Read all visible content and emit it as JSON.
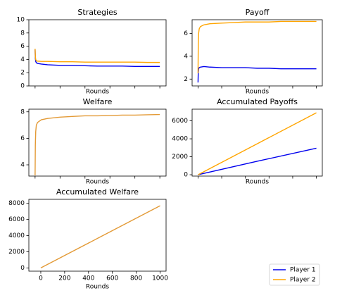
{
  "chart_data": [
    {
      "type": "line",
      "title": "Strategies",
      "xlabel": "Rounds",
      "x": [
        0,
        2,
        5,
        10,
        20,
        50,
        100,
        200,
        300,
        400,
        500,
        600,
        700,
        800,
        900,
        1000
      ],
      "xlim": [
        -50,
        1050
      ],
      "xticks": [
        0,
        200,
        400,
        600,
        800,
        1000
      ],
      "xtick_labels": false,
      "ylim": [
        0,
        10
      ],
      "yticks": [
        0,
        2,
        4,
        6,
        8,
        10
      ],
      "series": [
        {
          "name": "Player 1",
          "color": "#0000ee",
          "values": [
            5.5,
            4.2,
            3.7,
            3.5,
            3.4,
            3.3,
            3.2,
            3.1,
            3.1,
            3.05,
            3.0,
            3.0,
            3.0,
            2.95,
            2.95,
            2.95
          ]
        },
        {
          "name": "Player 2",
          "color": "#ffa500",
          "values": [
            5.6,
            4.5,
            4.0,
            3.8,
            3.75,
            3.7,
            3.7,
            3.65,
            3.65,
            3.6,
            3.6,
            3.6,
            3.6,
            3.6,
            3.55,
            3.55
          ]
        }
      ]
    },
    {
      "type": "line",
      "title": "Payoff",
      "xlabel": "Rounds",
      "x": [
        0,
        2,
        5,
        10,
        20,
        50,
        100,
        200,
        300,
        400,
        500,
        600,
        700,
        800,
        900,
        1000
      ],
      "xlim": [
        -50,
        1050
      ],
      "xticks": [
        0,
        200,
        400,
        600,
        800,
        1000
      ],
      "xtick_labels": false,
      "ylim": [
        1.4,
        7.2
      ],
      "yticks": [
        2,
        4,
        6
      ],
      "series": [
        {
          "name": "Player 1",
          "color": "#0000ee",
          "values": [
            1.7,
            2.6,
            2.9,
            3.0,
            3.05,
            3.1,
            3.05,
            3.0,
            3.0,
            3.0,
            2.95,
            2.95,
            2.9,
            2.9,
            2.9,
            2.9
          ]
        },
        {
          "name": "Player 2",
          "color": "#ffa500",
          "values": [
            2.5,
            5.0,
            6.0,
            6.4,
            6.6,
            6.75,
            6.85,
            6.9,
            6.95,
            7.0,
            7.0,
            7.0,
            7.05,
            7.05,
            7.05,
            7.05
          ]
        }
      ]
    },
    {
      "type": "line",
      "title": "Welfare",
      "xlabel": "Rounds",
      "x": [
        0,
        2,
        5,
        10,
        20,
        50,
        100,
        200,
        300,
        400,
        500,
        600,
        700,
        800,
        900,
        1000
      ],
      "xlim": [
        -50,
        1050
      ],
      "xticks": [
        0,
        200,
        400,
        600,
        800,
        1000
      ],
      "xtick_labels": false,
      "ylim": [
        3.15,
        8.2
      ],
      "yticks": [
        4,
        6,
        8
      ],
      "series": [
        {
          "color": "#e39a36",
          "values": [
            3.2,
            5.5,
            6.5,
            7.0,
            7.2,
            7.4,
            7.5,
            7.6,
            7.65,
            7.7,
            7.7,
            7.72,
            7.75,
            7.75,
            7.78,
            7.8
          ]
        }
      ]
    },
    {
      "type": "line",
      "title": "Accumulated Payoffs",
      "xlabel": "Rounds",
      "x": [
        0,
        500,
        1000
      ],
      "xlim": [
        -50,
        1050
      ],
      "xticks": [
        0,
        200,
        400,
        600,
        800,
        1000
      ],
      "xtick_labels": false,
      "ylim": [
        -150,
        7300
      ],
      "yticks": [
        0,
        2000,
        4000,
        6000
      ],
      "series": [
        {
          "name": "Player 1",
          "color": "#0000ee",
          "values": [
            0,
            1500,
            2950
          ]
        },
        {
          "name": "Player 2",
          "color": "#ffa500",
          "values": [
            0,
            3450,
            6900
          ]
        }
      ]
    },
    {
      "type": "line",
      "title": "Accumulated Welfare",
      "xlabel": "Rounds",
      "x": [
        0,
        500,
        1000
      ],
      "xlim": [
        -100,
        1050
      ],
      "xticks": [
        0,
        200,
        400,
        600,
        800,
        1000
      ],
      "xtick_labels": true,
      "ylim": [
        -400,
        8500
      ],
      "yticks": [
        0,
        2000,
        4000,
        6000,
        8000
      ],
      "series": [
        {
          "color": "#e39a36",
          "values": [
            0,
            3850,
            7700
          ]
        }
      ]
    }
  ]
}
